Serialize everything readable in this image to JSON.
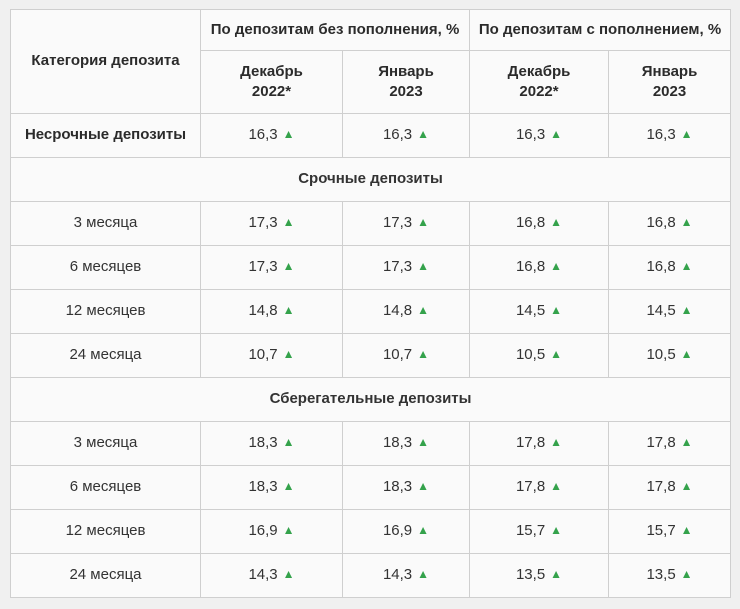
{
  "colors": {
    "page_background": "#f0f0f0",
    "cell_background": "#fafafa",
    "border": "#cfcfcf",
    "text": "#333333",
    "trend_up_green": "#34a24b"
  },
  "icons": {
    "trend_up_glyph": "▲"
  },
  "table": {
    "corner_header": "Категория депозита",
    "group_headers": [
      {
        "label": "По депозитам без пополнения, %"
      },
      {
        "label": "По депозитам с пополнением, %"
      }
    ],
    "column_headers": [
      {
        "month": "Декабрь",
        "year": "2022*"
      },
      {
        "month": "Январь",
        "year": "2023"
      },
      {
        "month": "Декабрь",
        "year": "2022*"
      },
      {
        "month": "Январь",
        "year": "2023"
      }
    ],
    "rows": [
      {
        "type": "data",
        "bold": true,
        "label": "Несрочные депозиты",
        "values": [
          {
            "value": "16,3",
            "trend": "up"
          },
          {
            "value": "16,3",
            "trend": "up"
          },
          {
            "value": "16,3",
            "trend": "up"
          },
          {
            "value": "16,3",
            "trend": "up"
          }
        ]
      },
      {
        "type": "section",
        "label": "Срочные депозиты"
      },
      {
        "type": "data",
        "bold": false,
        "label": "3 месяца",
        "values": [
          {
            "value": "17,3",
            "trend": "up"
          },
          {
            "value": "17,3",
            "trend": "up"
          },
          {
            "value": "16,8",
            "trend": "up"
          },
          {
            "value": "16,8",
            "trend": "up"
          }
        ]
      },
      {
        "type": "data",
        "bold": false,
        "label": "6 месяцев",
        "values": [
          {
            "value": "17,3",
            "trend": "up"
          },
          {
            "value": "17,3",
            "trend": "up"
          },
          {
            "value": "16,8",
            "trend": "up"
          },
          {
            "value": "16,8",
            "trend": "up"
          }
        ]
      },
      {
        "type": "data",
        "bold": false,
        "label": "12 месяцев",
        "values": [
          {
            "value": "14,8",
            "trend": "up"
          },
          {
            "value": "14,8",
            "trend": "up"
          },
          {
            "value": "14,5",
            "trend": "up"
          },
          {
            "value": "14,5",
            "trend": "up"
          }
        ]
      },
      {
        "type": "data",
        "bold": false,
        "label": "24 месяца",
        "values": [
          {
            "value": "10,7",
            "trend": "up"
          },
          {
            "value": "10,7",
            "trend": "up"
          },
          {
            "value": "10,5",
            "trend": "up"
          },
          {
            "value": "10,5",
            "trend": "up"
          }
        ]
      },
      {
        "type": "section",
        "label": "Сберегательные депозиты"
      },
      {
        "type": "data",
        "bold": false,
        "label": "3 месяца",
        "values": [
          {
            "value": "18,3",
            "trend": "up"
          },
          {
            "value": "18,3",
            "trend": "up"
          },
          {
            "value": "17,8",
            "trend": "up"
          },
          {
            "value": "17,8",
            "trend": "up"
          }
        ]
      },
      {
        "type": "data",
        "bold": false,
        "label": "6 месяцев",
        "values": [
          {
            "value": "18,3",
            "trend": "up"
          },
          {
            "value": "18,3",
            "trend": "up"
          },
          {
            "value": "17,8",
            "trend": "up"
          },
          {
            "value": "17,8",
            "trend": "up"
          }
        ]
      },
      {
        "type": "data",
        "bold": false,
        "label": "12 месяцев",
        "values": [
          {
            "value": "16,9",
            "trend": "up"
          },
          {
            "value": "16,9",
            "trend": "up"
          },
          {
            "value": "15,7",
            "trend": "up"
          },
          {
            "value": "15,7",
            "trend": "up"
          }
        ]
      },
      {
        "type": "data",
        "bold": false,
        "label": "24 месяца",
        "values": [
          {
            "value": "14,3",
            "trend": "up"
          },
          {
            "value": "14,3",
            "trend": "up"
          },
          {
            "value": "13,5",
            "trend": "up"
          },
          {
            "value": "13,5",
            "trend": "up"
          }
        ]
      }
    ]
  },
  "chart_data": {
    "type": "table",
    "title": "",
    "columns": [
      "Категория депозита",
      "По депозитам без пополнения, % — Декабрь 2022*",
      "По депозитам без пополнения, % — Январь 2023",
      "По депозитам с пополнением, % — Декабрь 2022*",
      "По депозитам с пополнением, % — Январь 2023"
    ],
    "sections": [
      {
        "section": null,
        "rows": [
          {
            "category": "Несрочные депозиты",
            "values": [
              16.3,
              16.3,
              16.3,
              16.3
            ],
            "trends": [
              "up",
              "up",
              "up",
              "up"
            ]
          }
        ]
      },
      {
        "section": "Срочные депозиты",
        "rows": [
          {
            "category": "3 месяца",
            "values": [
              17.3,
              17.3,
              16.8,
              16.8
            ],
            "trends": [
              "up",
              "up",
              "up",
              "up"
            ]
          },
          {
            "category": "6 месяцев",
            "values": [
              17.3,
              17.3,
              16.8,
              16.8
            ],
            "trends": [
              "up",
              "up",
              "up",
              "up"
            ]
          },
          {
            "category": "12 месяцев",
            "values": [
              14.8,
              14.8,
              14.5,
              14.5
            ],
            "trends": [
              "up",
              "up",
              "up",
              "up"
            ]
          },
          {
            "category": "24 месяца",
            "values": [
              10.7,
              10.7,
              10.5,
              10.5
            ],
            "trends": [
              "up",
              "up",
              "up",
              "up"
            ]
          }
        ]
      },
      {
        "section": "Сберегательные депозиты",
        "rows": [
          {
            "category": "3 месяца",
            "values": [
              18.3,
              18.3,
              17.8,
              17.8
            ],
            "trends": [
              "up",
              "up",
              "up",
              "up"
            ]
          },
          {
            "category": "6 месяцев",
            "values": [
              18.3,
              18.3,
              17.8,
              17.8
            ],
            "trends": [
              "up",
              "up",
              "up",
              "up"
            ]
          },
          {
            "category": "12 месяцев",
            "values": [
              16.9,
              16.9,
              15.7,
              15.7
            ],
            "trends": [
              "up",
              "up",
              "up",
              "up"
            ]
          },
          {
            "category": "24 месяца",
            "values": [
              14.3,
              14.3,
              13.5,
              13.5
            ],
            "trends": [
              "up",
              "up",
              "up",
              "up"
            ]
          }
        ]
      }
    ]
  }
}
